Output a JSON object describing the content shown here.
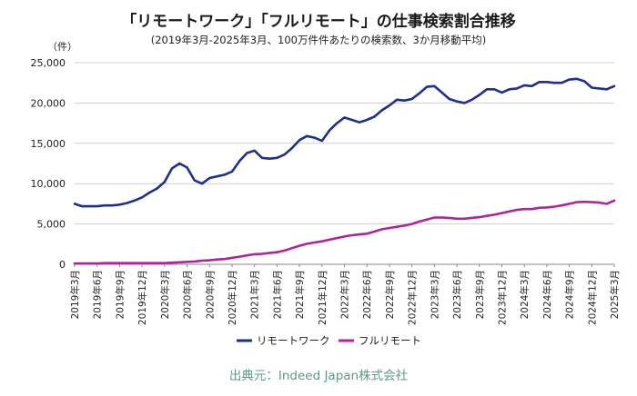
{
  "title": "「リモートワーク」「フルリモート」の仕事検索割合推移",
  "subtitle": "(2019年3月-2025年3月、100万件件あたりの検索数、3か月移動平均)",
  "unit": "（件）",
  "source": "出典元：Indeed Japan株式会社",
  "colors": {
    "remote": "#1f2f8a",
    "full_remote": "#b0249a",
    "grid": "#cfcfcf"
  },
  "chart_data": {
    "type": "line",
    "title": "「リモートワーク」「フルリモート」の仕事検索割合推移",
    "ylabel": "（件）",
    "ylim": [
      0,
      25000
    ],
    "yticks": [
      "0",
      "5,000",
      "10,000",
      "15,000",
      "20,000",
      "25,000"
    ],
    "xticks": [
      "2019年3月",
      "2019年6月",
      "2019年9月",
      "2019年12月",
      "2020年3月",
      "2020年6月",
      "2020年9月",
      "2020年12月",
      "2021年3月",
      "2021年6月",
      "2021年9月",
      "2021年12月",
      "2022年3月",
      "2022年6月",
      "2022年9月",
      "2022年12月",
      "2023年3月",
      "2023年6月",
      "2023年9月",
      "2023年12月",
      "2024年3月",
      "2024年6月",
      "2024年9月",
      "2024年12月",
      "2025年3月"
    ],
    "legend_position": "bottom",
    "grid": "horizontal",
    "series": [
      {
        "name": "リモートワーク",
        "values": [
          7500,
          7200,
          7200,
          7200,
          7300,
          7300,
          7400,
          7600,
          7900,
          8300,
          8900,
          9400,
          10200,
          11900,
          12500,
          12000,
          10400,
          10000,
          10700,
          10900,
          11100,
          11500,
          12800,
          13800,
          14100,
          13200,
          13100,
          13200,
          13600,
          14400,
          15400,
          15900,
          15700,
          15300,
          16600,
          17500,
          18200,
          17900,
          17600,
          17900,
          18300,
          19100,
          19700,
          20400,
          20300,
          20500,
          21200,
          22000,
          22100,
          21300,
          20500,
          20200,
          20000,
          20400,
          21000,
          21700,
          21700,
          21300,
          21700,
          21800,
          22200,
          22100,
          22600,
          22600,
          22500,
          22500,
          22900,
          23000,
          22700,
          21900,
          21800,
          21700,
          22100
        ]
      },
      {
        "name": "フルリモート",
        "values": [
          100,
          100,
          100,
          100,
          150,
          150,
          150,
          150,
          150,
          150,
          150,
          150,
          150,
          200,
          250,
          300,
          350,
          450,
          500,
          600,
          650,
          800,
          950,
          1100,
          1250,
          1300,
          1400,
          1500,
          1700,
          2000,
          2300,
          2550,
          2700,
          2850,
          3050,
          3250,
          3450,
          3600,
          3700,
          3800,
          4050,
          4350,
          4500,
          4650,
          4800,
          5000,
          5300,
          5550,
          5800,
          5800,
          5750,
          5650,
          5650,
          5750,
          5850,
          6000,
          6150,
          6350,
          6550,
          6750,
          6850,
          6850,
          7000,
          7050,
          7150,
          7300,
          7500,
          7700,
          7750,
          7700,
          7650,
          7500,
          7900
        ]
      }
    ]
  }
}
